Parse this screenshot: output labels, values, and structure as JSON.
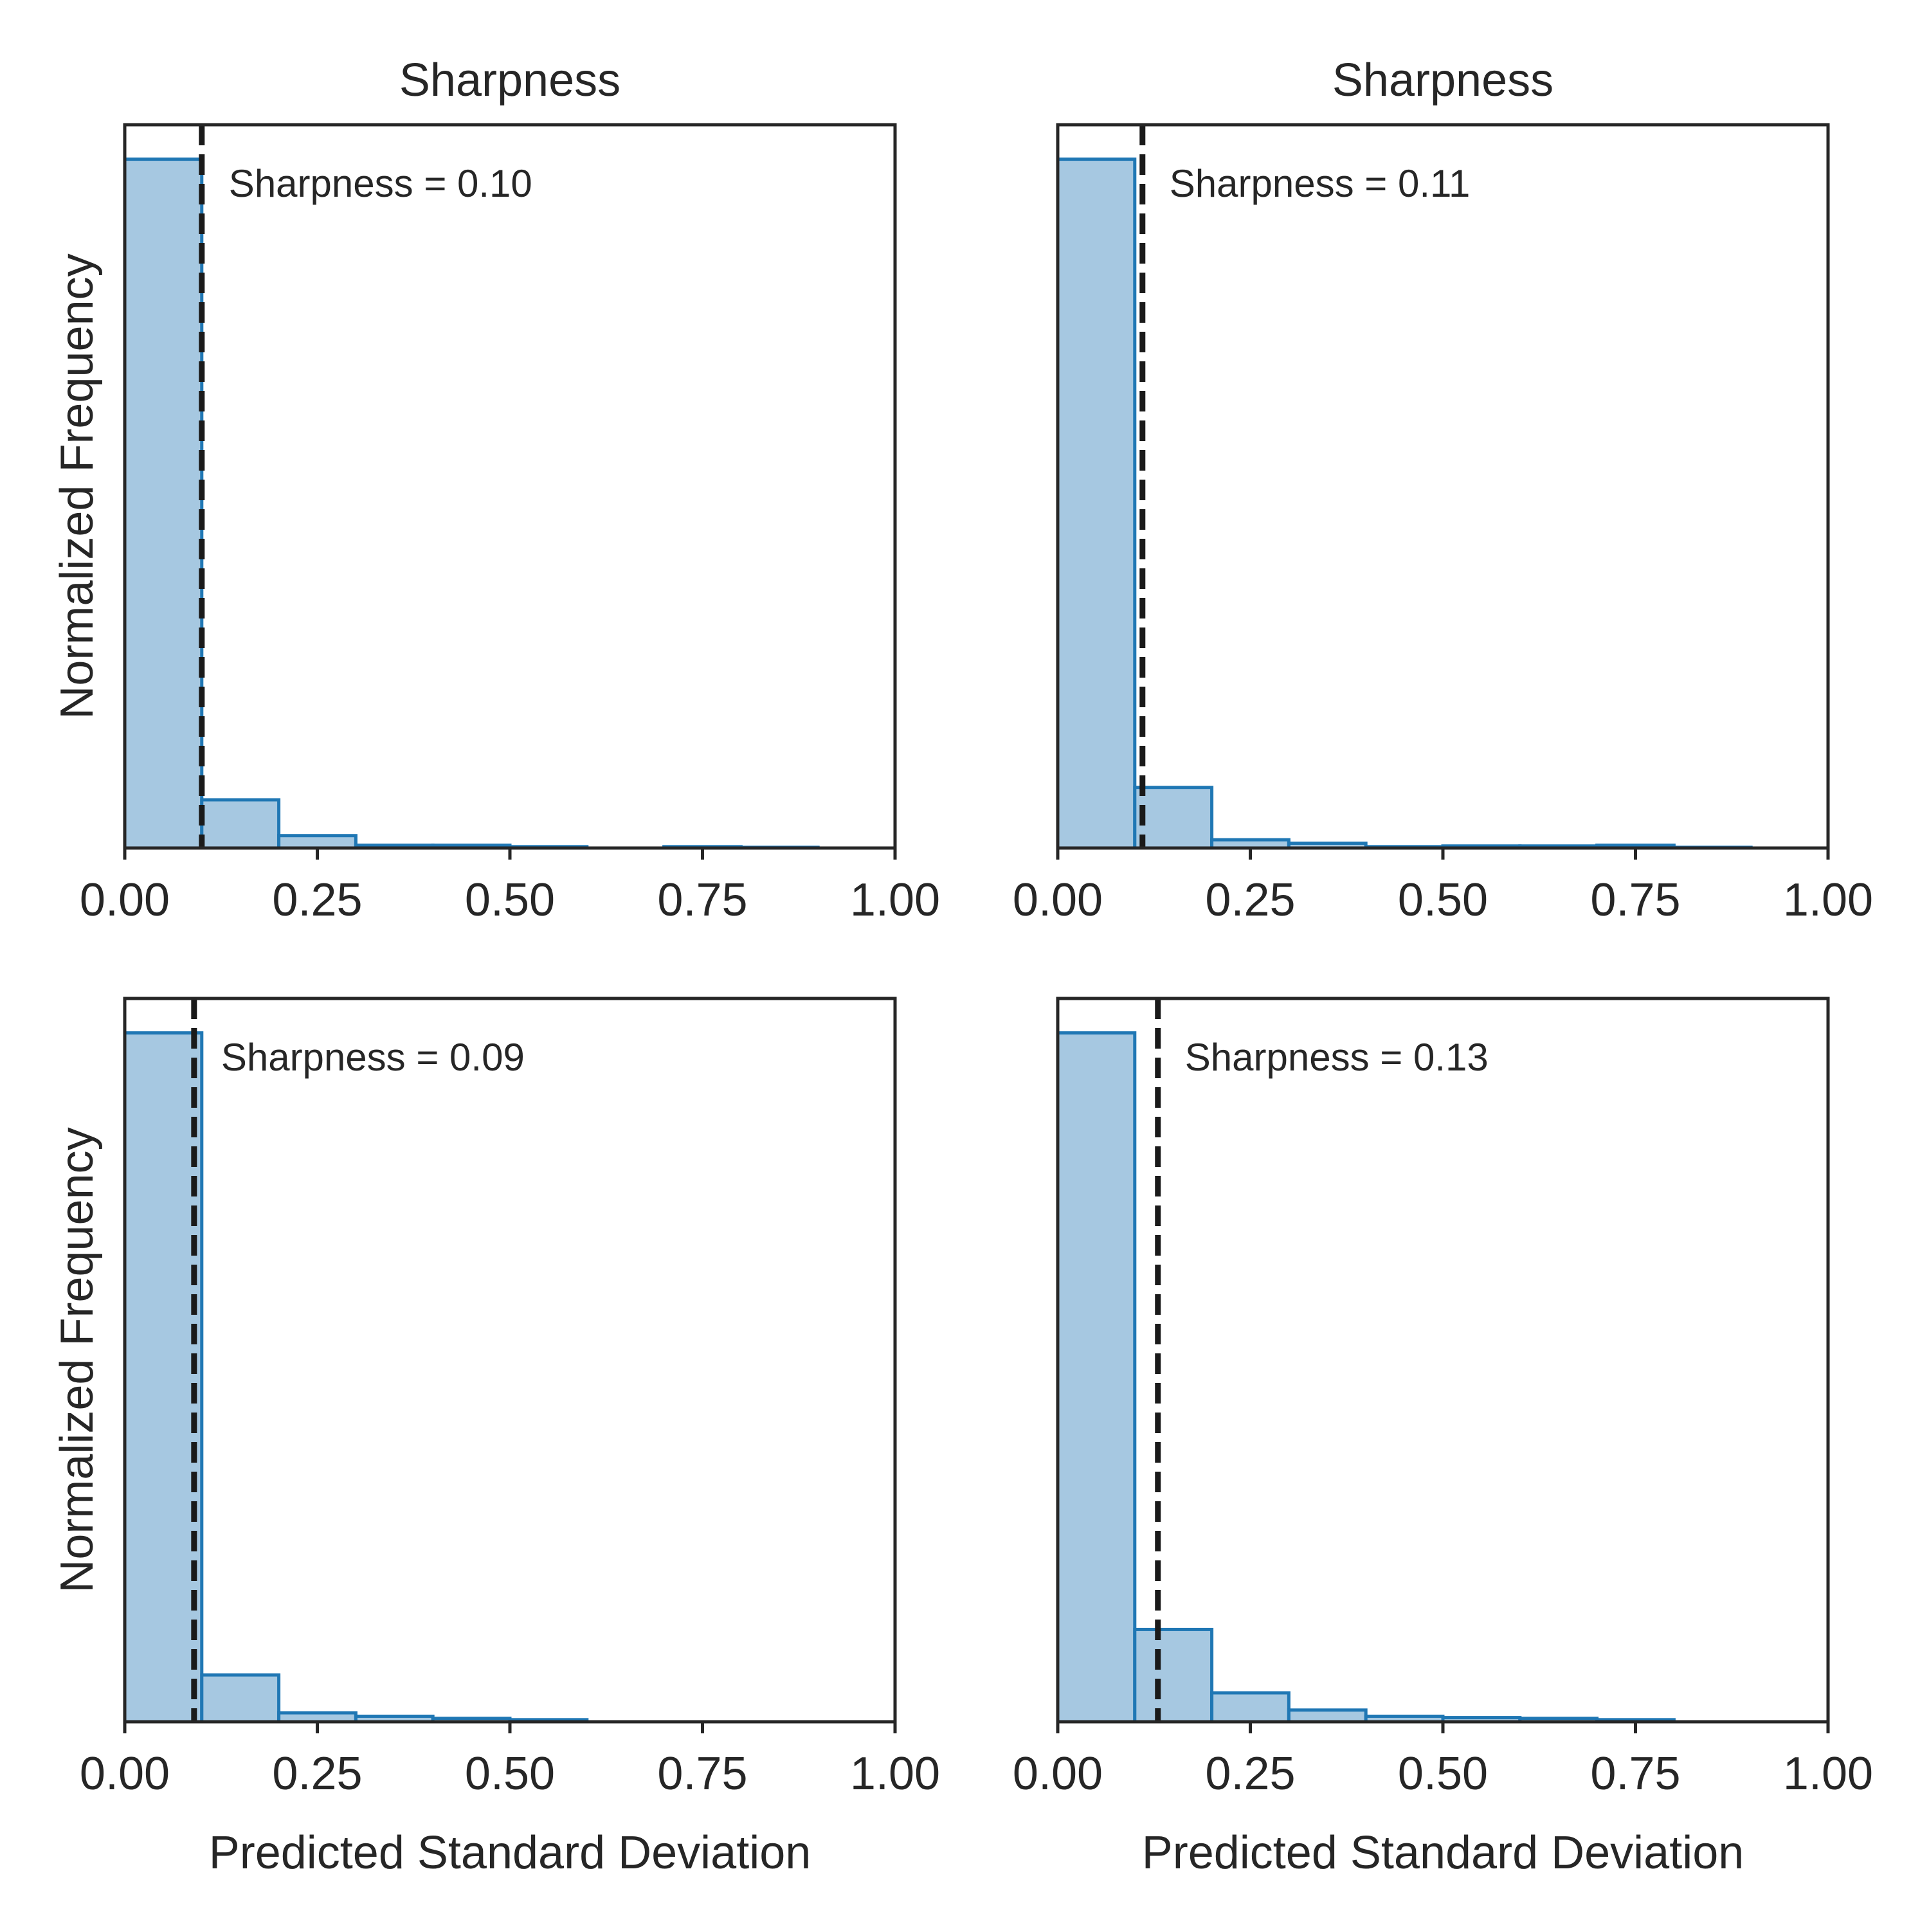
{
  "colors": {
    "bar_fill": "#a6c8e1",
    "bar_edge": "#1f77b4",
    "axes": "#262626",
    "mean_line": "#1a1a1a",
    "background": "#ffffff"
  },
  "chart_data": [
    {
      "type": "bar",
      "title": "Sharpness",
      "xlabel": "",
      "ylabel": "Normalized Frequency",
      "xlim": [
        0,
        1
      ],
      "ylim": [
        0,
        1.05
      ],
      "xticks": [
        "0.00",
        "0.25",
        "0.50",
        "0.75",
        "1.00"
      ],
      "bin_edges": [
        0,
        0.1,
        0.2,
        0.3,
        0.4,
        0.5,
        0.6,
        0.7,
        0.8,
        0.9,
        1.0
      ],
      "values": [
        1.0,
        0.07,
        0.018,
        0.004,
        0.004,
        0.002,
        0.0,
        0.002,
        0.001,
        0.0
      ],
      "mean_line": 0.1,
      "annotation": "Sharpness = 0.10",
      "grid": false
    },
    {
      "type": "bar",
      "title": "Sharpness",
      "xlabel": "",
      "ylabel": "",
      "xlim": [
        0,
        1
      ],
      "ylim": [
        0,
        1.05
      ],
      "xticks": [
        "0.00",
        "0.25",
        "0.50",
        "0.75",
        "1.00"
      ],
      "bin_edges": [
        0,
        0.1,
        0.2,
        0.3,
        0.4,
        0.5,
        0.6,
        0.7,
        0.8,
        0.9,
        1.0
      ],
      "values": [
        1.0,
        0.088,
        0.012,
        0.007,
        0.002,
        0.003,
        0.003,
        0.004,
        0.001,
        0.0
      ],
      "mean_line": 0.11,
      "annotation": "Sharpness = 0.11",
      "grid": false
    },
    {
      "type": "bar",
      "title": "",
      "xlabel": "Predicted Standard Deviation",
      "ylabel": "Normalized Frequency",
      "xlim": [
        0,
        1
      ],
      "ylim": [
        0,
        1.05
      ],
      "xticks": [
        "0.00",
        "0.25",
        "0.50",
        "0.75",
        "1.00"
      ],
      "bin_edges": [
        0,
        0.1,
        0.2,
        0.3,
        0.4,
        0.5,
        0.6,
        0.7,
        0.8,
        0.9,
        1.0
      ],
      "values": [
        1.0,
        0.068,
        0.013,
        0.008,
        0.005,
        0.003,
        0.0,
        0.0,
        0.0,
        0.0
      ],
      "mean_line": 0.09,
      "annotation": "Sharpness = 0.09",
      "grid": false
    },
    {
      "type": "bar",
      "title": "",
      "xlabel": "Predicted Standard Deviation",
      "ylabel": "",
      "xlim": [
        0,
        1
      ],
      "ylim": [
        0,
        1.05
      ],
      "xticks": [
        "0.00",
        "0.25",
        "0.50",
        "0.75",
        "1.00"
      ],
      "bin_edges": [
        0,
        0.1,
        0.2,
        0.3,
        0.4,
        0.5,
        0.6,
        0.7,
        0.8,
        0.9,
        1.0
      ],
      "values": [
        1.0,
        0.134,
        0.042,
        0.017,
        0.008,
        0.006,
        0.005,
        0.003,
        0.0,
        0.0
      ],
      "mean_line": 0.13,
      "annotation": "Sharpness = 0.13",
      "grid": false
    }
  ]
}
